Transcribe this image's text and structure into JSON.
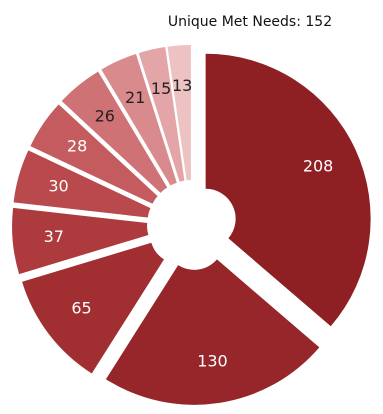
{
  "chart_data": {
    "type": "pie",
    "subtitle": "Unique Met Needs: 152",
    "categories": [
      null,
      null,
      null,
      null,
      null,
      null,
      null,
      null,
      null,
      null
    ],
    "values": [
      208,
      130,
      65,
      37,
      30,
      28,
      26,
      21,
      15,
      13
    ],
    "colors": [
      "#8e1f22",
      "#96262a",
      "#a12e31",
      "#ad3a3d",
      "#b9494c",
      "#c45c5f",
      "#cf7275",
      "#d98a8d",
      "#e3a5a7",
      "#edc2c3"
    ]
  }
}
